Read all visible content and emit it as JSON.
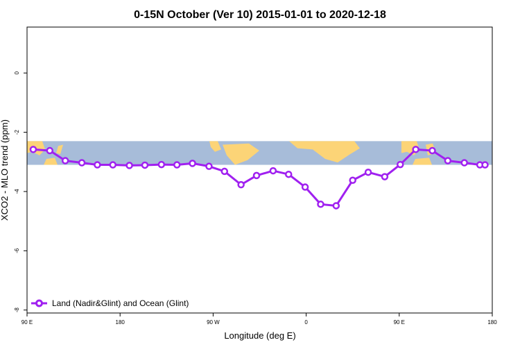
{
  "chart_data": {
    "type": "line",
    "title": "0-15N October (Ver 10)   2015-01-01 to 2020-12-18",
    "xlabel": "Longitude (deg E)",
    "ylabel": "XCO2 - MLO trend (ppm)",
    "x_tick_labels": [
      "90 E",
      "180",
      "90 W",
      "0",
      "90 E",
      "180"
    ],
    "x_tick_values": [
      90,
      180,
      270,
      360,
      450,
      540
    ],
    "xlim": [
      90,
      540
    ],
    "y_ticks": [
      0,
      -2,
      -4,
      -6,
      -8
    ],
    "ylim": [
      -8.1,
      1.55
    ],
    "legend": {
      "placement": "bottom-left",
      "label": "Land (Nadir&Glint) and Ocean (Glint)"
    },
    "background_map": {
      "y_range": [
        -3.1,
        -2.3
      ],
      "ocean_color": "#a7bcd9",
      "land_color": "#fcd477"
    },
    "series": [
      {
        "name": "Land (Nadir&Glint) and Ocean (Glint)",
        "color": "#a020f0",
        "x": [
          96,
          112,
          127,
          143,
          158,
          173,
          189,
          204,
          220,
          235,
          250,
          266,
          281,
          297,
          312,
          328,
          343,
          359,
          374,
          389,
          405,
          420,
          436,
          451,
          466,
          482,
          497,
          513,
          528,
          533
        ],
        "y": [
          -2.58,
          -2.62,
          -2.96,
          -3.03,
          -3.1,
          -3.1,
          -3.12,
          -3.11,
          -3.09,
          -3.1,
          -3.05,
          -3.15,
          -3.32,
          -3.77,
          -3.46,
          -3.3,
          -3.42,
          -3.85,
          -4.43,
          -4.48,
          -3.62,
          -3.35,
          -3.5,
          -3.09,
          -2.58,
          -2.62,
          -2.96,
          -3.03,
          -3.1,
          -3.1
        ]
      }
    ]
  }
}
